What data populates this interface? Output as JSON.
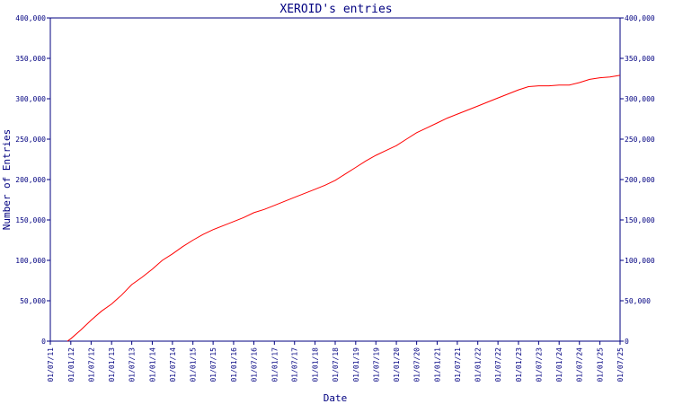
{
  "chart_data": {
    "type": "line",
    "title": "XEROID's entries",
    "xlabel": "Date",
    "ylabel": "Number of Entries",
    "ylim": [
      0,
      400000
    ],
    "yticks": [
      0,
      50000,
      100000,
      150000,
      200000,
      250000,
      300000,
      350000,
      400000
    ],
    "ytick_labels": [
      "0",
      "50,000",
      "100,000",
      "150,000",
      "200,000",
      "250,000",
      "300,000",
      "350,000",
      "400,000"
    ],
    "xticks": [
      "01/07/11",
      "01/01/12",
      "01/07/12",
      "01/01/13",
      "01/07/13",
      "01/01/14",
      "01/07/14",
      "01/01/15",
      "01/07/15",
      "01/01/16",
      "01/07/16",
      "01/01/17",
      "01/07/17",
      "01/01/18",
      "01/07/18",
      "01/01/19",
      "01/07/19",
      "01/01/20",
      "01/07/20",
      "01/01/21",
      "01/07/21",
      "01/01/22",
      "01/07/22",
      "01/01/23",
      "01/07/23",
      "01/01/24",
      "01/07/24",
      "01/01/25",
      "01/07/25"
    ],
    "grid": false,
    "colors": {
      "axis": "#000080",
      "line": "#ff0000"
    },
    "series": [
      {
        "x": [
          "2011-12-01",
          "2012-01-01",
          "2012-04-01",
          "2012-07-01",
          "2012-10-01",
          "2013-01-01",
          "2013-04-01",
          "2013-07-01",
          "2013-10-01",
          "2014-01-01",
          "2014-04-01",
          "2014-07-01",
          "2014-10-01",
          "2015-01-01",
          "2015-04-01",
          "2015-07-01",
          "2015-10-01",
          "2016-01-01",
          "2016-04-01",
          "2016-07-01",
          "2016-10-01",
          "2017-01-01",
          "2017-04-01",
          "2017-07-01",
          "2017-10-01",
          "2018-01-01",
          "2018-04-01",
          "2018-07-01",
          "2018-10-01",
          "2019-01-01",
          "2019-04-01",
          "2019-07-01",
          "2019-10-01",
          "2020-01-01",
          "2020-04-01",
          "2020-07-01",
          "2020-10-01",
          "2021-01-01",
          "2021-04-01",
          "2021-07-01",
          "2021-10-01",
          "2022-01-01",
          "2022-04-01",
          "2022-07-01",
          "2022-10-01",
          "2023-01-01",
          "2023-04-01",
          "2023-07-01",
          "2023-10-01",
          "2024-01-01",
          "2024-04-01",
          "2024-07-01",
          "2024-10-01",
          "2025-01-01",
          "2025-04-01",
          "2025-07-01"
        ],
        "y": [
          0,
          3000,
          14000,
          26000,
          37000,
          46000,
          57000,
          70000,
          79000,
          89000,
          100000,
          108000,
          117000,
          125000,
          132000,
          138000,
          143000,
          148000,
          153000,
          159000,
          163000,
          168000,
          173000,
          178000,
          183000,
          188000,
          193000,
          199000,
          207000,
          215000,
          223000,
          230000,
          236000,
          242000,
          250000,
          258000,
          264000,
          270000,
          276000,
          281000,
          286000,
          291000,
          296000,
          301000,
          306000,
          311000,
          315000,
          316000,
          316000,
          317000,
          317000,
          320000,
          324000,
          326000,
          327000,
          329000
        ]
      }
    ]
  }
}
